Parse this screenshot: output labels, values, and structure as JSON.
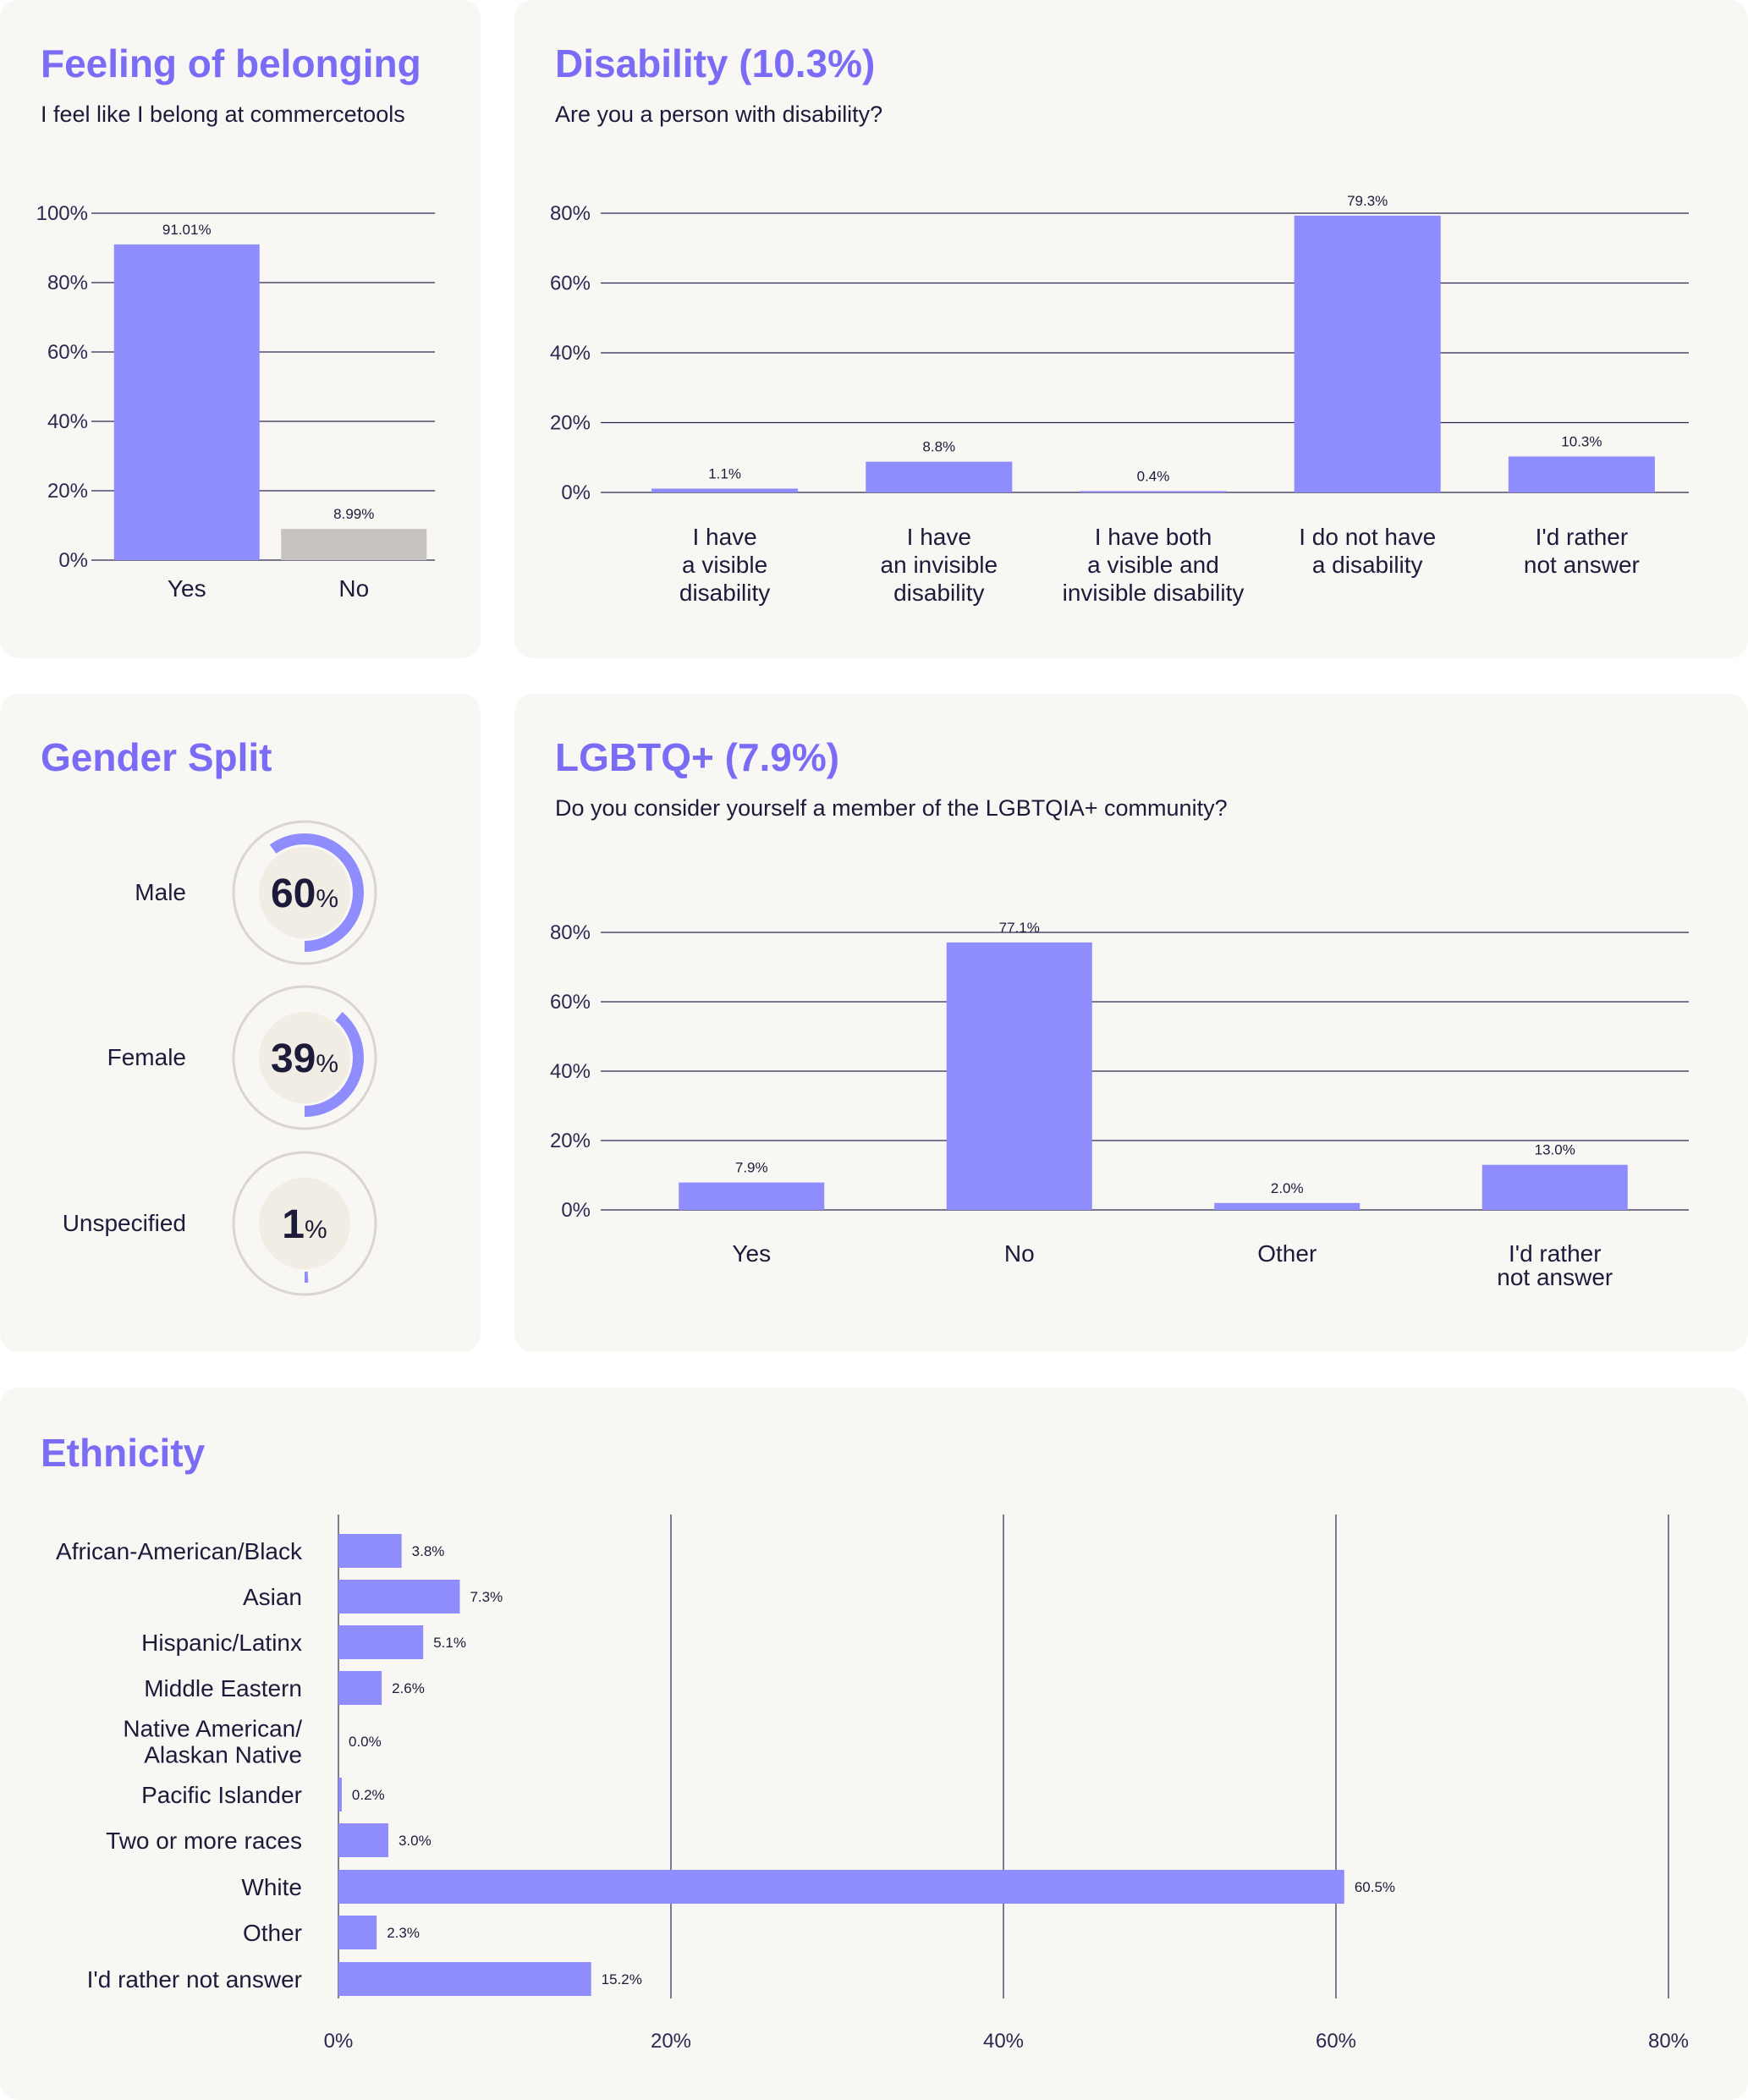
{
  "colors": {
    "accent": "#7b6cf6",
    "bar": "#8f8cfd",
    "bar_alt": "#c7c3bf",
    "grid": "#2b2950",
    "card": "#f8f7f4",
    "ring": "#d9d6d0",
    "ring_fill": "#f1ece4"
  },
  "belonging": {
    "title": "Feeling of belonging",
    "subtitle": "I feel like I belong at commercetools"
  },
  "disability": {
    "title": "Disability (10.3%)",
    "subtitle": "Are you a person with disability?"
  },
  "gender": {
    "title": "Gender Split"
  },
  "lgbtq": {
    "title": "LGBTQ+ (7.9%)",
    "subtitle": "Do you consider yourself a member of the LGBTQIA+ community?"
  },
  "ethnicity": {
    "title": "Ethnicity"
  },
  "chart_data": [
    {
      "id": "belonging",
      "type": "bar",
      "title": "Feeling of belonging",
      "subtitle": "I feel like I belong at commercetools",
      "categories": [
        [
          "Yes"
        ],
        [
          "No"
        ]
      ],
      "values": [
        91.01,
        8.99
      ],
      "value_labels": [
        "91.01%",
        "8.99%"
      ],
      "bar_colors": [
        "#8f8cfd",
        "#c7c3bf"
      ],
      "ylim": [
        0,
        100
      ],
      "yticks": [
        "0%",
        "20%",
        "40%",
        "60%",
        "80%",
        "100%"
      ],
      "grid": true
    },
    {
      "id": "disability",
      "type": "bar",
      "title": "Disability (10.3%)",
      "subtitle": "Are you a person with disability?",
      "categories": [
        [
          "I have",
          "a visible",
          "disability"
        ],
        [
          "I have",
          "an invisible",
          "disability"
        ],
        [
          "I have both",
          "a visible and",
          "invisible disability"
        ],
        [
          "I do not have",
          "a disability"
        ],
        [
          "I'd rather",
          "not answer"
        ]
      ],
      "values": [
        1.1,
        8.8,
        0.4,
        79.3,
        10.3
      ],
      "value_labels": [
        "1.1%",
        "8.8%",
        "0.4%",
        "79.3%",
        "10.3%"
      ],
      "ylim": [
        0,
        80
      ],
      "yticks": [
        "0%",
        "20%",
        "40%",
        "60%",
        "80%"
      ],
      "grid": true
    },
    {
      "id": "gender",
      "type": "pie",
      "title": "Gender Split",
      "slices": [
        {
          "label": "Male",
          "value": 60,
          "number": "60",
          "unit": "%"
        },
        {
          "label": "Female",
          "value": 39,
          "number": "39",
          "unit": "%"
        },
        {
          "label": "Unspecified",
          "value": 1,
          "number": "1",
          "unit": "%"
        }
      ]
    },
    {
      "id": "lgbtq",
      "type": "bar",
      "title": "LGBTQ+ (7.9%)",
      "subtitle": "Do you consider yourself a member of the LGBTQIA+ community?",
      "categories": [
        [
          "Yes"
        ],
        [
          "No"
        ],
        [
          "Other"
        ],
        [
          "I'd rather",
          "not answer"
        ]
      ],
      "values": [
        7.9,
        77.1,
        2.0,
        13.0
      ],
      "value_labels": [
        "7.9%",
        "77.1%",
        "2.0%",
        "13.0%"
      ],
      "ylim": [
        0,
        80
      ],
      "yticks": [
        "0%",
        "20%",
        "40%",
        "60%",
        "80%"
      ],
      "grid": true
    },
    {
      "id": "ethnicity",
      "type": "bar",
      "orientation": "horizontal",
      "title": "Ethnicity",
      "categories": [
        [
          "African-American/Black"
        ],
        [
          "Asian"
        ],
        [
          "Hispanic/Latinx"
        ],
        [
          "Middle Eastern"
        ],
        [
          "Native American/",
          "Alaskan Native"
        ],
        [
          "Pacific Islander"
        ],
        [
          "Two or more races"
        ],
        [
          "White"
        ],
        [
          "Other"
        ],
        [
          "I'd rather not answer"
        ]
      ],
      "values": [
        3.8,
        7.3,
        5.1,
        2.6,
        0.0,
        0.2,
        3.0,
        60.5,
        2.3,
        15.2
      ],
      "value_labels": [
        "3.8%",
        "7.3%",
        "5.1%",
        "2.6%",
        "0.0%",
        "0.2%",
        "3.0%",
        "60.5%",
        "2.3%",
        "15.2%"
      ],
      "xlim": [
        0,
        80
      ],
      "xticks": [
        "0%",
        "20%",
        "40%",
        "60%",
        "80%"
      ],
      "grid": true
    }
  ]
}
